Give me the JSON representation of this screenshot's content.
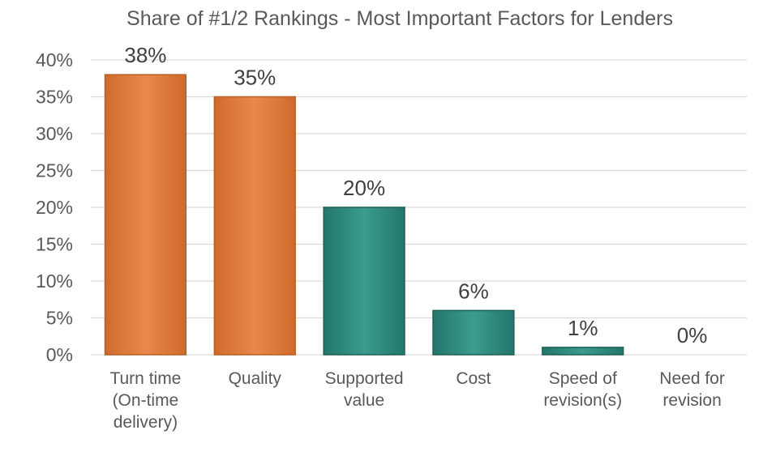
{
  "chart_data": {
    "type": "bar",
    "title": "Share of #1/2 Rankings - Most Important Factors for Lenders",
    "categories": [
      [
        "Turn time",
        "(On-time",
        "delivery)"
      ],
      [
        "Quality"
      ],
      [
        "Supported",
        "value"
      ],
      [
        "Cost"
      ],
      [
        "Speed of",
        "revision(s)"
      ],
      [
        "Need for",
        "revision"
      ]
    ],
    "values": [
      38,
      35,
      20,
      6,
      1,
      0
    ],
    "value_labels": [
      "38%",
      "35%",
      "20%",
      "6%",
      "1%",
      "0%"
    ],
    "ylim": [
      0,
      40
    ],
    "yticks": [
      0,
      5,
      10,
      15,
      20,
      25,
      30,
      35,
      40
    ],
    "ytick_labels": [
      "0%",
      "5%",
      "10%",
      "15%",
      "20%",
      "25%",
      "30%",
      "35%",
      "40%"
    ],
    "grid": true,
    "xlabel": "",
    "ylabel": "",
    "colors": {
      "highlight": "#e07b39",
      "highlight_edge": "#b85f25",
      "other": "#2f8a7e",
      "other_edge": "#1f5e56"
    },
    "highlight_count": 2
  }
}
